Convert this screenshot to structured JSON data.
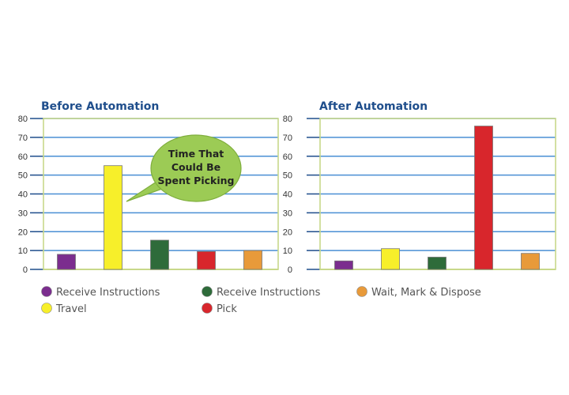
{
  "chart_data": [
    {
      "type": "bar",
      "title": "Before Automation",
      "categories": [
        "Receive Instructions",
        "Travel",
        "Receive Instructions",
        "Pick",
        "Wait, Mark & Dispose"
      ],
      "values": [
        8,
        55,
        15.5,
        9.5,
        10
      ],
      "colors": [
        "#7b2d8e",
        "#f7ef2a",
        "#2e6b3a",
        "#d8262c",
        "#e89a3a"
      ],
      "ylim": [
        0,
        80
      ],
      "yticks": [
        0,
        10,
        20,
        30,
        40,
        50,
        60,
        70,
        80
      ],
      "grid": true,
      "annotation": {
        "lines": [
          "Time That",
          "Could Be",
          "Spent Picking"
        ],
        "points_to_category": "Travel",
        "color": "#9ccb55"
      }
    },
    {
      "type": "bar",
      "title": "After Automation",
      "categories": [
        "Receive Instructions",
        "Travel",
        "Receive Instructions",
        "Pick",
        "Wait, Mark & Dispose"
      ],
      "values": [
        4.5,
        11,
        6.5,
        76,
        8.5
      ],
      "colors": [
        "#7b2d8e",
        "#f7ef2a",
        "#2e6b3a",
        "#d8262c",
        "#e89a3a"
      ],
      "ylim": [
        0,
        80
      ],
      "yticks": [
        0,
        10,
        20,
        30,
        40,
        50,
        60,
        70,
        80
      ],
      "grid": true
    }
  ],
  "legend": [
    {
      "label": "Receive Instructions",
      "color": "#7b2d8e"
    },
    {
      "label": "Travel",
      "color": "#f7ef2a"
    },
    {
      "label": "Receive Instructions",
      "color": "#2e6b3a"
    },
    {
      "label": "Pick",
      "color": "#d8262c"
    },
    {
      "label": "Wait, Mark & Dispose",
      "color": "#e89a3a"
    }
  ],
  "style": {
    "frame_color": "#c8d88a",
    "grid_color": "#4a8fd4",
    "axis_color": "#1f4e8c",
    "bar_stroke": "#777777"
  }
}
